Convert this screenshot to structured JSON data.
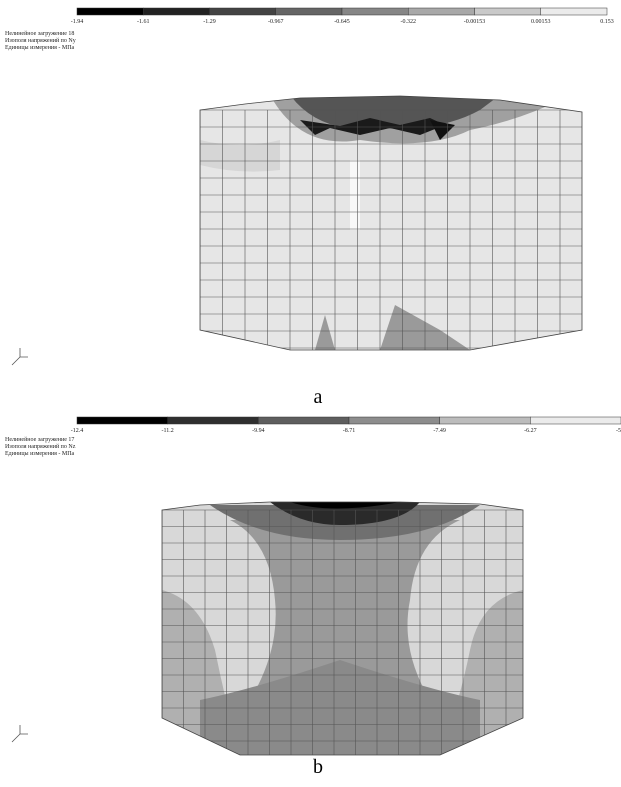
{
  "panels": [
    {
      "scale": [
        "-1.94",
        "-1.61",
        "-1.29",
        "-0.967",
        "-0.645",
        "-0.322",
        "-0.00153",
        "0.00153",
        "0.153"
      ],
      "header": [
        "Нелинейное загружение 18",
        "Изополя напряжений по Ny",
        "Единицы измерения - МПа"
      ],
      "label": "a"
    },
    {
      "scale": [
        "-12.4",
        "-11.2",
        "-9.94",
        "-8.71",
        "-7.49",
        "-6.27",
        "-5"
      ],
      "header": [
        "Нелинейное загружение 17",
        "Изополя напряжений по Nz",
        "Единицы измерения - МПа"
      ],
      "label": "b"
    }
  ]
}
